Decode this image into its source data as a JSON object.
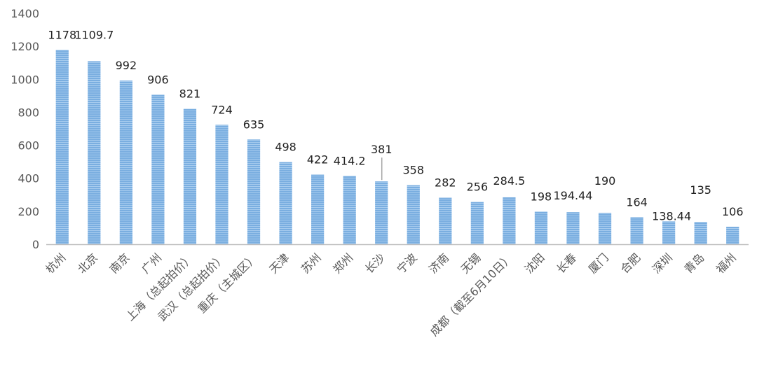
{
  "chart_data": {
    "type": "bar",
    "title": "",
    "xlabel": "",
    "ylabel": "",
    "ylim": [
      0,
      1400
    ],
    "yticks": [
      0,
      200,
      400,
      600,
      800,
      1000,
      1200,
      1400
    ],
    "grid": false,
    "legend": "none",
    "bar_color": "#7aaee0",
    "bar_stripe_color": "#9cc4ec",
    "axis_color": "#bfbfbf",
    "categories": [
      "杭州",
      "北京",
      "南京",
      "广州",
      "上海（总起拍价）",
      "武汉（总起拍价）",
      "重庆（主城区）",
      "天津",
      "苏州",
      "郑州",
      "长沙",
      "宁波",
      "济南",
      "无锡",
      "成都（截至6月10日）",
      "沈阳",
      "长春",
      "厦门",
      "合肥",
      "深圳",
      "青岛",
      "福州"
    ],
    "values": [
      1178,
      1109.7,
      992,
      906,
      821,
      724,
      635,
      498,
      422,
      414.2,
      381,
      358,
      282,
      256,
      284.5,
      198,
      194.44,
      190,
      164,
      138.44,
      135,
      106
    ],
    "data_labels": [
      "1178",
      "1109.7",
      "992",
      "906",
      "821",
      "724",
      "635",
      "498",
      "422",
      "414.2",
      "381",
      "358",
      "282",
      "256",
      "284.5",
      "198",
      "194.44",
      "190",
      "164",
      "138.44",
      "135",
      "106"
    ]
  }
}
